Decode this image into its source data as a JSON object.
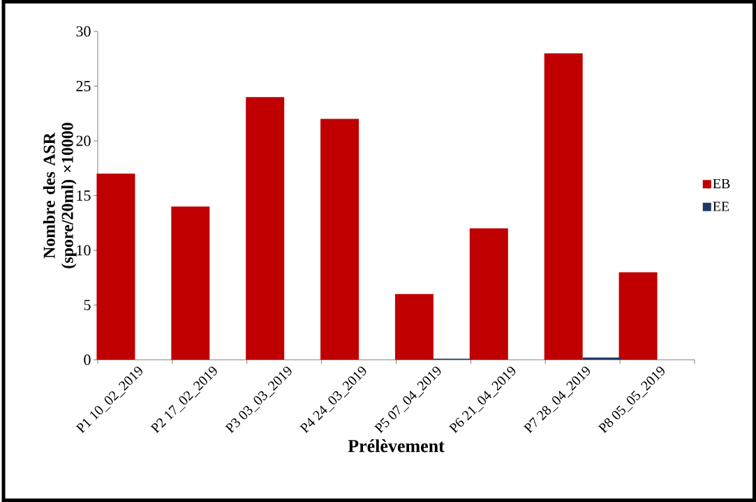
{
  "chart_data": {
    "type": "bar",
    "xlabel": "Prélèvement",
    "ylabel": "Nombre des ASR  (spore/20ml) ×10000",
    "categories": [
      "P1 10_02_2019",
      "P2 17_02_2019",
      "P3 03_03_2019",
      "P4 24_03_2019",
      "P5 07_04_2019",
      "P6 21_04_2019",
      "P7 28_04_2019",
      "P8 05_05_2019"
    ],
    "series": [
      {
        "name": "EB",
        "color": "#c00000",
        "values": [
          17,
          14,
          24,
          22,
          6,
          12,
          28,
          8
        ]
      },
      {
        "name": "EE",
        "color": "#1f3864",
        "values": [
          0,
          0,
          0,
          0,
          0.1,
          0,
          0.2,
          0
        ]
      }
    ],
    "ylim": [
      0,
      30
    ],
    "yticks": [
      0,
      5,
      10,
      15,
      20,
      25,
      30
    ],
    "grid": false,
    "legend": "right"
  }
}
